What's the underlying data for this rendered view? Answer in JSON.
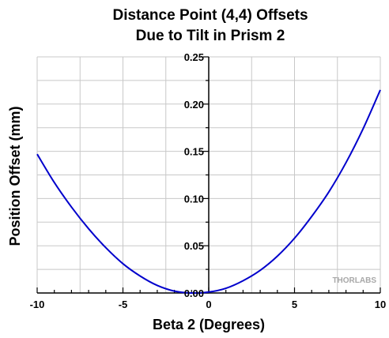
{
  "chart_data": {
    "type": "line",
    "title": [
      "Distance Point (4,4) Offsets",
      "Due to Tilt in Prism 2"
    ],
    "xlabel": "Beta 2 (Degrees)",
    "ylabel": "Position Offset (mm)",
    "xlim": [
      -10,
      10
    ],
    "ylim": [
      0,
      0.25
    ],
    "xticks": [
      -10,
      -5,
      0,
      5,
      10
    ],
    "xtick_labels": [
      "-10",
      "-5",
      "0",
      "5",
      "10"
    ],
    "yticks": [
      0,
      0.05,
      0.1,
      0.15,
      0.2,
      0.25
    ],
    "ytick_labels": [
      "0.00",
      "0.05",
      "0.10",
      "0.15",
      "0.20",
      "0.25"
    ],
    "grid": true,
    "series": [
      {
        "color": "#0000cc",
        "x": [
          -10,
          -9,
          -8,
          -7,
          -6,
          -5,
          -4,
          -3,
          -2,
          -1,
          0,
          1,
          2,
          3,
          4,
          5,
          6,
          7,
          8,
          9,
          10
        ],
        "y": [
          0.147,
          0.117,
          0.091,
          0.068,
          0.048,
          0.031,
          0.018,
          0.008,
          0.002,
          0.0,
          0.001,
          0.005,
          0.013,
          0.024,
          0.039,
          0.058,
          0.081,
          0.107,
          0.138,
          0.174,
          0.215
        ]
      }
    ],
    "watermark": "THORLABS"
  }
}
